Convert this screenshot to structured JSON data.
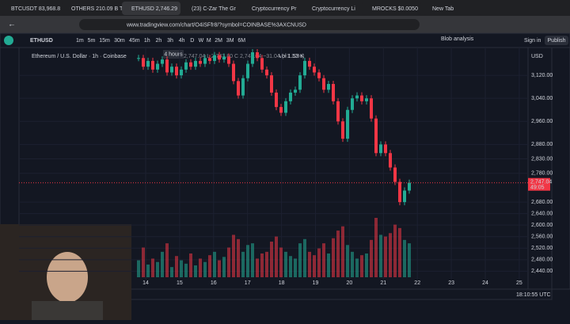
{
  "tabs": [
    "BTCUSDT 83,968.8 T",
    "OTHERS 210.09 B T",
    "ETHUSD 2,746.29",
    "(23) C-Zar The Gr",
    "Cryptocurrency Pr",
    "Cryptocurrency Li",
    "MROCKS $0.0050",
    "New Tab"
  ],
  "address": "www.tradingview.com/chart/O4iSFfr8/?symbol=COINBASE%3AXCNUSD",
  "toolbar": {
    "symbol": "ETHUSD",
    "intervals": [
      "1m",
      "5m",
      "15m",
      "30m",
      "45m",
      "1h",
      "2h",
      "3h",
      "4h",
      "D",
      "W",
      "M",
      "2M",
      "3M",
      "6M"
    ],
    "tooltip": "4 hours",
    "layout_name": "Blob analysis",
    "sign_in": "Sign in",
    "publish": "Publish"
  },
  "chart": {
    "title": "Ethereum / U.S. Dollar · 1h · Coinbase",
    "ohlc": "H 2,747.04  L 2,743.80  C 2,747.04  −31.04 (−1.12%)",
    "vol_label": "Vol 1.53 K",
    "currency": "USD",
    "price_label": "2,747.04",
    "countdown": "49:05",
    "time": "18:10:55 UTC",
    "up_color": "#22ab94",
    "down_color": "#f23645",
    "ylim": [
      2419,
      3211
    ],
    "yticks": [
      {
        "value": 3120,
        "label": "3,120.00"
      },
      {
        "value": 3040,
        "label": "3,040.00"
      },
      {
        "value": 2960,
        "label": "2,960.00"
      },
      {
        "value": 2880,
        "label": "2,880.00"
      },
      {
        "value": 2830,
        "label": "2,830.00"
      },
      {
        "value": 2780,
        "label": "2,780.00"
      },
      {
        "value": 2680,
        "label": "2,680.00"
      },
      {
        "value": 2640,
        "label": "2,640.00"
      },
      {
        "value": 2600,
        "label": "2,600.00"
      },
      {
        "value": 2560,
        "label": "2,560.00"
      },
      {
        "value": 2520,
        "label": "2,520.00"
      },
      {
        "value": 2480,
        "label": "2,480.00"
      },
      {
        "value": 2440,
        "label": "2,440.00"
      }
    ],
    "xlabels": [
      "14",
      "15",
      "16",
      "17",
      "18",
      "19",
      "20",
      "21",
      "22",
      "23",
      "24",
      "25"
    ],
    "candles": [
      3180,
      3150,
      3170,
      3140,
      3160,
      3175,
      3130,
      3150,
      3120,
      3140,
      3165,
      3150,
      3170,
      3160,
      3180,
      3170,
      3190,
      3175,
      3185,
      3160,
      3100,
      3050,
      3110,
      3160,
      3200,
      3180,
      3140,
      3120,
      3060,
      3010,
      2990,
      3030,
      3060,
      3070,
      3120,
      3170,
      3150,
      3130,
      3110,
      3070,
      3090,
      3030,
      2960,
      2900,
      3000,
      3040,
      3050,
      3030,
      3040,
      2970,
      2850,
      2880,
      2850,
      2800,
      2750,
      2680,
      2720,
      2747.04
    ],
    "volume": [
      20,
      35,
      15,
      22,
      18,
      30,
      40,
      12,
      25,
      20,
      16,
      28,
      14,
      22,
      18,
      26,
      30,
      20,
      24,
      35,
      50,
      45,
      30,
      38,
      40,
      22,
      28,
      30,
      42,
      48,
      35,
      30,
      25,
      22,
      40,
      45,
      30,
      26,
      34,
      40,
      28,
      46,
      55,
      60,
      38,
      30,
      22,
      26,
      28,
      44,
      70,
      50,
      48,
      52,
      62,
      58,
      44,
      40
    ]
  }
}
